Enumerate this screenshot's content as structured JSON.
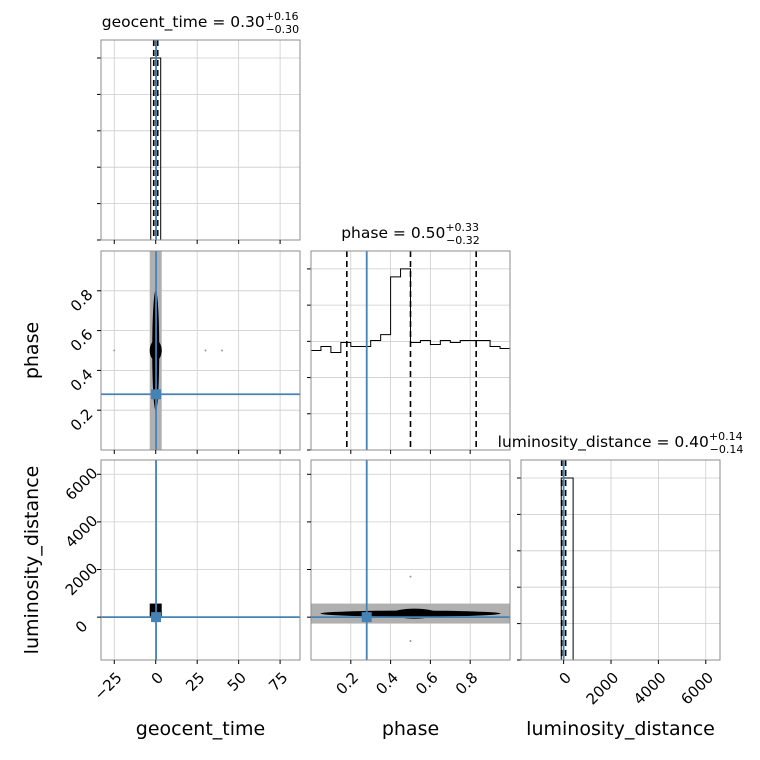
{
  "chart_data": {
    "type": "corner",
    "parameters": [
      "geocent_time",
      "phase",
      "luminosity_distance"
    ],
    "axis_labels": {
      "geocent_time": "geocent_time",
      "phase": "phase",
      "luminosity_distance": "luminosity_distance"
    },
    "titles": [
      {
        "param": "geocent_time",
        "name": "geocent_time",
        "median": "0.30",
        "plus": "+0.16",
        "minus": "−0.30"
      },
      {
        "param": "phase",
        "name": "phase",
        "median": "0.50",
        "plus": "+0.33",
        "minus": "−0.32"
      },
      {
        "param": "luminosity_distance",
        "name": "luminosity_distance",
        "median": "0.40",
        "plus": "+0.14",
        "minus": "−0.14"
      }
    ],
    "ranges": {
      "geocent_time": [
        -33,
        87
      ],
      "phase": [
        0.0,
        1.0
      ],
      "luminosity_distance": [
        -1800,
        6600
      ]
    },
    "ticks": {
      "geocent_time": [
        {
          "v": -25,
          "t": "−25"
        },
        {
          "v": 0,
          "t": "0"
        },
        {
          "v": 25,
          "t": "25"
        },
        {
          "v": 50,
          "t": "50"
        },
        {
          "v": 75,
          "t": "75"
        }
      ],
      "phase": [
        {
          "v": 0.2,
          "t": "0.2"
        },
        {
          "v": 0.4,
          "t": "0.4"
        },
        {
          "v": 0.6,
          "t": "0.6"
        },
        {
          "v": 0.8,
          "t": "0.8"
        }
      ],
      "luminosity_distance": [
        {
          "v": 0,
          "t": "0"
        },
        {
          "v": 2000,
          "t": "2000"
        },
        {
          "v": 4000,
          "t": "4000"
        },
        {
          "v": 6000,
          "t": "6000"
        }
      ]
    },
    "truths": {
      "geocent_time": 0.2,
      "phase": 0.28,
      "luminosity_distance": 0
    },
    "quantiles": {
      "geocent_time": [
        0.0,
        0.3,
        0.46
      ],
      "phase": [
        0.18,
        0.5,
        0.83
      ],
      "luminosity_distance": [
        0.26,
        0.4,
        0.54
      ]
    },
    "histograms": {
      "geocent_time": {
        "edges": [
          -3.0,
          3.0
        ],
        "counts": [
          1.0
        ]
      },
      "phase": {
        "edges": [
          0.0,
          0.05,
          0.1,
          0.15,
          0.2,
          0.25,
          0.3,
          0.35,
          0.4,
          0.45,
          0.5,
          0.55,
          0.6,
          0.65,
          0.7,
          0.75,
          0.8,
          0.85,
          0.9,
          0.95,
          1.0
        ],
        "counts": [
          0.5,
          0.52,
          0.49,
          0.54,
          0.52,
          0.52,
          0.55,
          0.58,
          0.87,
          0.91,
          0.54,
          0.55,
          0.53,
          0.55,
          0.54,
          0.55,
          0.55,
          0.55,
          0.52,
          0.51
        ]
      },
      "luminosity_distance": {
        "edges": [
          -100,
          400
        ],
        "counts": [
          1.0
        ]
      }
    },
    "grid": true
  }
}
